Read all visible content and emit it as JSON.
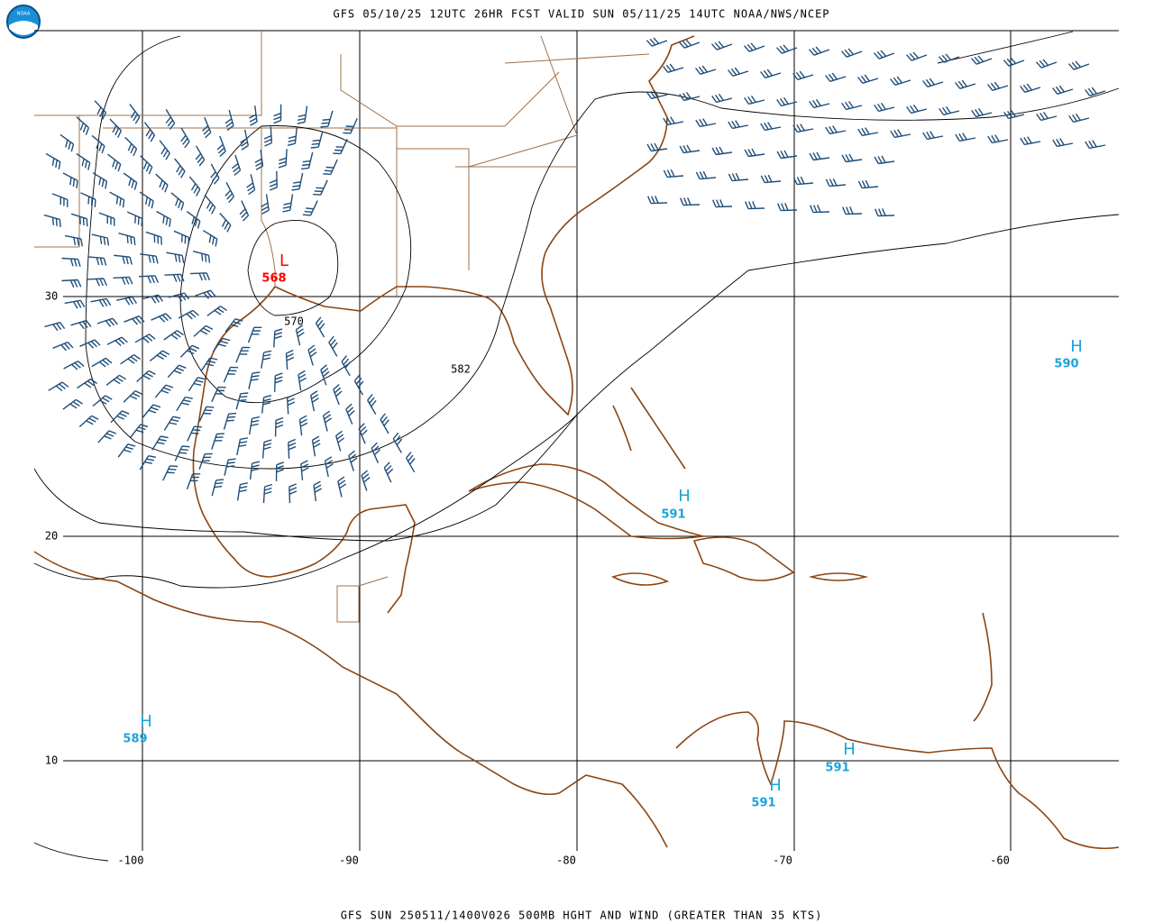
{
  "header": "GFS 05/10/25 12UTC 26HR FCST VALID SUN 05/11/25 14UTC NOAA/NWS/NCEP",
  "footer": "GFS SUN 250511/1400V026 500MB HGHT AND WIND (GREATER THAN 35 KTS)",
  "logo_text": "NOAA",
  "lat_labels": [
    "30",
    "20",
    "10"
  ],
  "lon_labels": [
    "-100",
    "-90",
    "-80",
    "-70",
    "-60"
  ],
  "centers": [
    {
      "label": "L",
      "value": "568"
    },
    {
      "label": "H",
      "value": "590"
    },
    {
      "label": "H",
      "value": "591"
    },
    {
      "label": "H",
      "value": "589"
    },
    {
      "label": "H",
      "value": "591"
    },
    {
      "label": "H",
      "value": "591"
    }
  ],
  "contour_labels": [
    "570",
    "582"
  ]
}
